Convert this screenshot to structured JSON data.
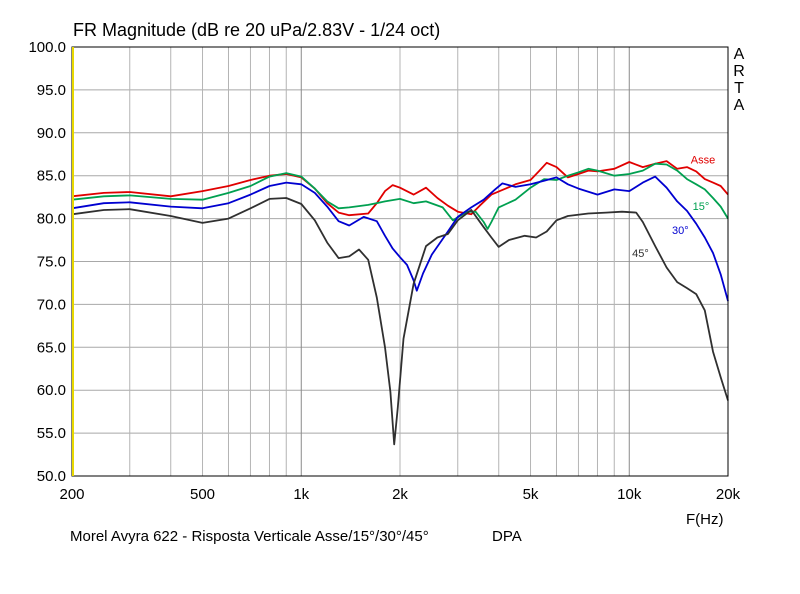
{
  "chart_data": {
    "type": "line",
    "title": "FR Magnitude (dB re 20 uPa/2.83V - 1/24 oct)",
    "watermark_letters": [
      "A",
      "R",
      "T",
      "A"
    ],
    "xlabel": "F(Hz)",
    "x_scale": "log",
    "xlim": [
      200,
      20000
    ],
    "ylim": [
      50,
      100
    ],
    "grid": true,
    "x_tick_values": [
      200,
      500,
      1000,
      2000,
      5000,
      10000,
      20000
    ],
    "x_tick_labels": [
      "200",
      "500",
      "1k",
      "2k",
      "5k",
      "10k",
      "20k"
    ],
    "y_tick_values": [
      100,
      95,
      90,
      85,
      80,
      75,
      70,
      65,
      60,
      55,
      50
    ],
    "y_tick_labels": [
      "100.0",
      "95.0",
      "90.0",
      "85.0",
      "80.0",
      "75.0",
      "70.0",
      "65.0",
      "60.0",
      "55.0",
      "50.0"
    ],
    "caption": "Morel Avyra 622 - Risposta Verticale Asse/15°/30°/45°",
    "caption_extra": "DPA",
    "series": [
      {
        "name": "Asse",
        "color": "#e00000",
        "points": [
          [
            200,
            82.6
          ],
          [
            250,
            83.0
          ],
          [
            300,
            83.1
          ],
          [
            400,
            82.6
          ],
          [
            500,
            83.2
          ],
          [
            600,
            83.8
          ],
          [
            700,
            84.5
          ],
          [
            800,
            85.0
          ],
          [
            900,
            85.2
          ],
          [
            1000,
            84.8
          ],
          [
            1100,
            83.5
          ],
          [
            1200,
            81.8
          ],
          [
            1300,
            80.7
          ],
          [
            1400,
            80.4
          ],
          [
            1600,
            80.6
          ],
          [
            1700,
            81.8
          ],
          [
            1800,
            83.2
          ],
          [
            1900,
            83.9
          ],
          [
            2000,
            83.6
          ],
          [
            2200,
            82.8
          ],
          [
            2400,
            83.6
          ],
          [
            2600,
            82.4
          ],
          [
            2800,
            81.5
          ],
          [
            3000,
            80.8
          ],
          [
            3300,
            80.5
          ],
          [
            3500,
            81.5
          ],
          [
            3800,
            82.8
          ],
          [
            4200,
            83.5
          ],
          [
            4500,
            84.0
          ],
          [
            5000,
            84.5
          ],
          [
            5300,
            85.5
          ],
          [
            5600,
            86.5
          ],
          [
            6000,
            86.0
          ],
          [
            6500,
            84.8
          ],
          [
            7000,
            85.2
          ],
          [
            7500,
            85.6
          ],
          [
            8000,
            85.5
          ],
          [
            9000,
            85.8
          ],
          [
            10000,
            86.6
          ],
          [
            11000,
            86.0
          ],
          [
            12000,
            86.4
          ],
          [
            13000,
            86.7
          ],
          [
            14000,
            85.8
          ],
          [
            15000,
            86.0
          ],
          [
            16000,
            85.5
          ],
          [
            17000,
            84.6
          ],
          [
            18000,
            84.2
          ],
          [
            19000,
            83.8
          ],
          [
            20000,
            82.8
          ]
        ]
      },
      {
        "name": "15°",
        "color": "#00a050",
        "points": [
          [
            200,
            82.2
          ],
          [
            250,
            82.6
          ],
          [
            300,
            82.7
          ],
          [
            400,
            82.3
          ],
          [
            500,
            82.2
          ],
          [
            600,
            83.0
          ],
          [
            700,
            83.8
          ],
          [
            800,
            84.9
          ],
          [
            900,
            85.3
          ],
          [
            1000,
            84.9
          ],
          [
            1100,
            83.5
          ],
          [
            1200,
            82.0
          ],
          [
            1300,
            81.2
          ],
          [
            1400,
            81.3
          ],
          [
            1600,
            81.6
          ],
          [
            1800,
            82.0
          ],
          [
            2000,
            82.3
          ],
          [
            2200,
            81.8
          ],
          [
            2400,
            82.0
          ],
          [
            2700,
            81.3
          ],
          [
            2900,
            79.8
          ],
          [
            3200,
            80.8
          ],
          [
            3400,
            80.8
          ],
          [
            3600,
            79.6
          ],
          [
            3700,
            78.8
          ],
          [
            3800,
            79.6
          ],
          [
            4000,
            81.3
          ],
          [
            4500,
            82.2
          ],
          [
            5000,
            83.6
          ],
          [
            5500,
            84.6
          ],
          [
            6000,
            84.5
          ],
          [
            6500,
            85.0
          ],
          [
            7000,
            85.4
          ],
          [
            7500,
            85.8
          ],
          [
            8000,
            85.6
          ],
          [
            9000,
            85.0
          ],
          [
            10000,
            85.2
          ],
          [
            11000,
            85.6
          ],
          [
            12000,
            86.4
          ],
          [
            13000,
            86.3
          ],
          [
            14000,
            85.6
          ],
          [
            15000,
            84.6
          ],
          [
            16000,
            84.0
          ],
          [
            17000,
            83.4
          ],
          [
            18000,
            82.4
          ],
          [
            19000,
            81.4
          ],
          [
            20000,
            80.0
          ]
        ]
      },
      {
        "name": "30°",
        "color": "#0000d0",
        "points": [
          [
            200,
            81.2
          ],
          [
            250,
            81.8
          ],
          [
            300,
            81.9
          ],
          [
            400,
            81.4
          ],
          [
            500,
            81.2
          ],
          [
            600,
            81.8
          ],
          [
            700,
            82.8
          ],
          [
            800,
            83.8
          ],
          [
            900,
            84.2
          ],
          [
            1000,
            84.0
          ],
          [
            1100,
            83.0
          ],
          [
            1200,
            81.4
          ],
          [
            1300,
            79.7
          ],
          [
            1400,
            79.2
          ],
          [
            1550,
            80.2
          ],
          [
            1700,
            79.7
          ],
          [
            1800,
            78.0
          ],
          [
            1900,
            76.5
          ],
          [
            2000,
            75.5
          ],
          [
            2100,
            74.6
          ],
          [
            2200,
            72.8
          ],
          [
            2250,
            71.6
          ],
          [
            2350,
            73.6
          ],
          [
            2500,
            75.8
          ],
          [
            2800,
            78.5
          ],
          [
            3000,
            80.2
          ],
          [
            3300,
            81.3
          ],
          [
            3600,
            82.2
          ],
          [
            3900,
            83.4
          ],
          [
            4100,
            84.1
          ],
          [
            4500,
            83.7
          ],
          [
            5000,
            84.0
          ],
          [
            5500,
            84.4
          ],
          [
            6000,
            84.8
          ],
          [
            6500,
            84.0
          ],
          [
            7000,
            83.5
          ],
          [
            8000,
            82.8
          ],
          [
            9000,
            83.4
          ],
          [
            10000,
            83.2
          ],
          [
            11000,
            84.2
          ],
          [
            12000,
            84.9
          ],
          [
            13000,
            83.6
          ],
          [
            14000,
            82.0
          ],
          [
            15000,
            80.9
          ],
          [
            16000,
            79.4
          ],
          [
            17000,
            77.8
          ],
          [
            18000,
            76.0
          ],
          [
            19000,
            73.5
          ],
          [
            20000,
            70.4
          ]
        ]
      },
      {
        "name": "45°",
        "color": "#303030",
        "points": [
          [
            200,
            80.5
          ],
          [
            250,
            81.0
          ],
          [
            300,
            81.1
          ],
          [
            400,
            80.3
          ],
          [
            500,
            79.5
          ],
          [
            600,
            80.0
          ],
          [
            700,
            81.2
          ],
          [
            800,
            82.3
          ],
          [
            900,
            82.4
          ],
          [
            1000,
            81.7
          ],
          [
            1100,
            79.8
          ],
          [
            1200,
            77.2
          ],
          [
            1300,
            75.4
          ],
          [
            1400,
            75.6
          ],
          [
            1500,
            76.4
          ],
          [
            1600,
            75.2
          ],
          [
            1700,
            70.8
          ],
          [
            1800,
            65.0
          ],
          [
            1870,
            59.8
          ],
          [
            1920,
            53.7
          ],
          [
            1970,
            58.0
          ],
          [
            2050,
            66.0
          ],
          [
            2200,
            72.4
          ],
          [
            2400,
            76.8
          ],
          [
            2600,
            77.8
          ],
          [
            2800,
            78.2
          ],
          [
            3000,
            79.8
          ],
          [
            3300,
            81.0
          ],
          [
            3600,
            79.0
          ],
          [
            3800,
            77.8
          ],
          [
            4000,
            76.7
          ],
          [
            4300,
            77.5
          ],
          [
            4800,
            78.0
          ],
          [
            5200,
            77.8
          ],
          [
            5600,
            78.5
          ],
          [
            6000,
            79.8
          ],
          [
            6500,
            80.3
          ],
          [
            7500,
            80.6
          ],
          [
            8500,
            80.7
          ],
          [
            9500,
            80.8
          ],
          [
            10500,
            80.7
          ],
          [
            11000,
            79.6
          ],
          [
            12000,
            76.8
          ],
          [
            13000,
            74.3
          ],
          [
            14000,
            72.6
          ],
          [
            15000,
            71.9
          ],
          [
            16000,
            71.2
          ],
          [
            17000,
            69.3
          ],
          [
            18000,
            64.5
          ],
          [
            19000,
            61.5
          ],
          [
            20000,
            58.8
          ]
        ]
      }
    ],
    "annotations": [
      {
        "text": "Asse",
        "x": 15400,
        "y": 86.4,
        "color": "#e00000"
      },
      {
        "text": "15°",
        "x": 15600,
        "y": 81.0,
        "color": "#00a050"
      },
      {
        "text": "30°",
        "x": 13500,
        "y": 78.2,
        "color": "#0000d0"
      },
      {
        "text": "45°",
        "x": 10200,
        "y": 75.5,
        "color": "#303030"
      }
    ]
  }
}
